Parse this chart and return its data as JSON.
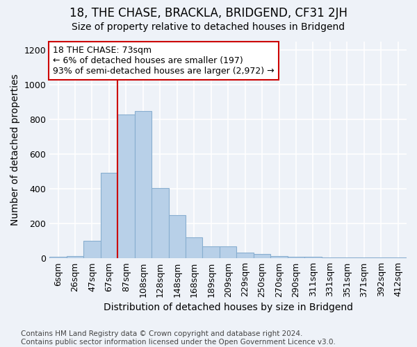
{
  "title": "18, THE CHASE, BRACKLA, BRIDGEND, CF31 2JH",
  "subtitle": "Size of property relative to detached houses in Bridgend",
  "xlabel": "Distribution of detached houses by size in Bridgend",
  "ylabel": "Number of detached properties",
  "footer_line1": "Contains HM Land Registry data © Crown copyright and database right 2024.",
  "footer_line2": "Contains public sector information licensed under the Open Government Licence v3.0.",
  "categories": [
    "6sqm",
    "26sqm",
    "47sqm",
    "67sqm",
    "87sqm",
    "108sqm",
    "128sqm",
    "148sqm",
    "168sqm",
    "189sqm",
    "209sqm",
    "229sqm",
    "250sqm",
    "270sqm",
    "290sqm",
    "311sqm",
    "331sqm",
    "351sqm",
    "371sqm",
    "392sqm",
    "412sqm"
  ],
  "values": [
    10,
    15,
    100,
    495,
    830,
    850,
    405,
    250,
    120,
    70,
    68,
    35,
    25,
    15,
    10,
    10,
    5,
    5,
    5,
    5,
    5
  ],
  "bar_color": "#b8d0e8",
  "bar_edgecolor": "#88aed0",
  "vline_color": "#cc0000",
  "annotation_text": "18 THE CHASE: 73sqm\n← 6% of detached houses are smaller (197)\n93% of semi-detached houses are larger (2,972) →",
  "annotation_box_color": "#cc0000",
  "ylim": [
    0,
    1250
  ],
  "bg_color": "#eef2f8",
  "grid_color": "#ffffff",
  "title_fontsize": 12,
  "subtitle_fontsize": 10,
  "axis_label_fontsize": 10,
  "tick_fontsize": 9,
  "footer_fontsize": 7.5
}
